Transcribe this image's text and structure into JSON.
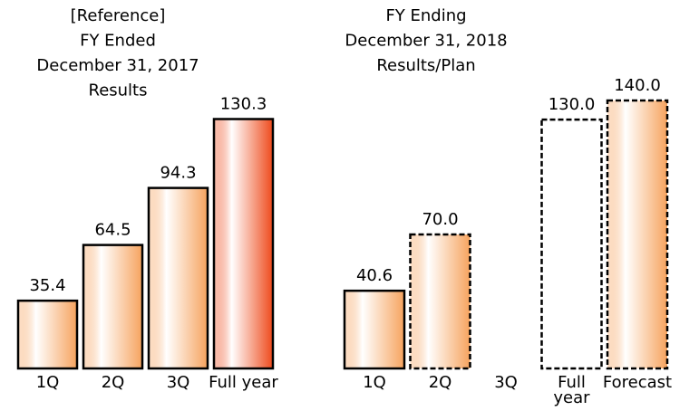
{
  "chart_data": [
    {
      "type": "bar",
      "title": [
        "[Reference]",
        "FY Ended",
        "December 31, 2017",
        "Results"
      ],
      "categories": [
        "1Q",
        "2Q",
        "3Q",
        "Full year"
      ],
      "values": [
        35.4,
        64.5,
        94.3,
        130.3
      ],
      "bar_colors": [
        "#f6a35e",
        "#f6a35e",
        "#f6a35e",
        "#ee4a1c"
      ],
      "bar_styles": [
        "solid",
        "solid",
        "solid",
        "solid"
      ]
    },
    {
      "type": "bar",
      "title": [
        "FY Ending",
        "December 31, 2018",
        "Results/Plan"
      ],
      "categories": [
        "1Q",
        "2Q",
        "3Q",
        "Full year",
        "Forecast"
      ],
      "values": [
        40.6,
        70.0,
        null,
        130.0,
        140.0
      ],
      "value_labels": [
        "40.6",
        "70.0",
        null,
        "130.0",
        "140.0"
      ],
      "bar_colors": [
        "#f6a35e",
        "#f6a35e",
        null,
        "#ffffff",
        "#f6a35e"
      ],
      "bar_styles": [
        "solid",
        "dashed",
        null,
        "dashed",
        "dashed"
      ]
    }
  ]
}
